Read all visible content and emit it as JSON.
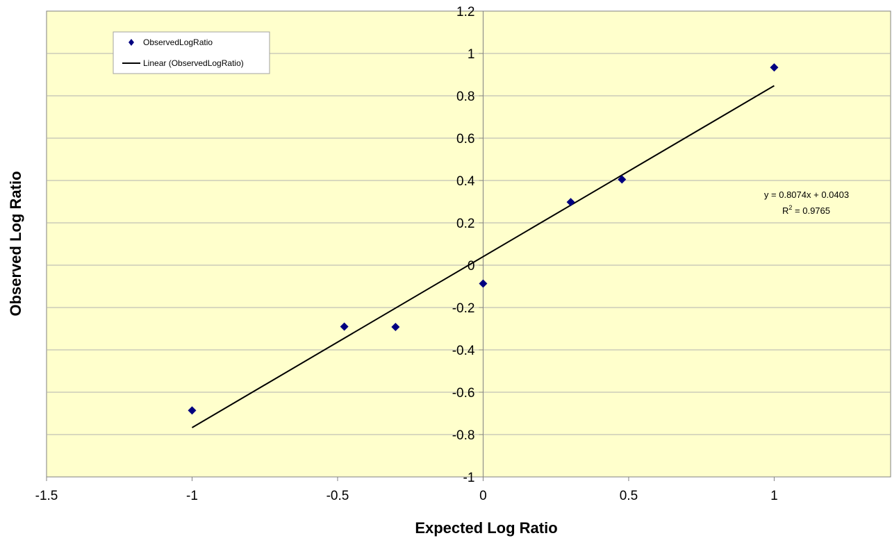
{
  "chart_data": {
    "type": "scatter",
    "title": "",
    "xlabel": "Expected Log Ratio",
    "ylabel": "Observed Log Ratio",
    "xlim": [
      -1.5,
      1.4
    ],
    "ylim": [
      -1,
      1.2
    ],
    "x_ticks": [
      -1.5,
      -1,
      -0.5,
      0,
      0.5,
      1
    ],
    "y_ticks": [
      -1,
      -0.8,
      -0.6,
      -0.4,
      -0.2,
      0,
      0.2,
      0.4,
      0.6,
      0.8,
      1,
      1.2
    ],
    "x_tick_labels": [
      "-1.5",
      "-1",
      "-0.5",
      "0",
      "0.5",
      "1"
    ],
    "y_tick_labels": [
      "-1",
      "-0.8",
      "-0.6",
      "-0.4",
      "-0.2",
      "0",
      "0.2",
      "0.4",
      "0.6",
      "0.8",
      "1",
      "1.2"
    ],
    "grid": "horizontal",
    "plot_background": "#ffffcc",
    "series": [
      {
        "name": "ObservedLogRatio",
        "marker": "diamond",
        "color": "#000080",
        "points": [
          {
            "x": -1,
            "y": -0.686
          },
          {
            "x": -0.477,
            "y": -0.29
          },
          {
            "x": -0.301,
            "y": -0.292
          },
          {
            "x": 0,
            "y": -0.087
          },
          {
            "x": 0.301,
            "y": 0.298
          },
          {
            "x": 0.477,
            "y": 0.405
          },
          {
            "x": 1,
            "y": 0.934
          }
        ]
      }
    ],
    "trendline": {
      "name": "Linear (ObservedLogRatio)",
      "type": "linear",
      "slope": 0.8074,
      "intercept": 0.0403,
      "x_range": [
        -1,
        1
      ],
      "color": "#000000"
    },
    "annotation": {
      "equation": "y = 0.8074x + 0.0403",
      "r2_prefix": "R",
      "r2_superscript": "2",
      "r2_value": " = 0.9765"
    },
    "legend": {
      "placement": "top-left",
      "entries": [
        "ObservedLogRatio",
        "Linear (ObservedLogRatio)"
      ]
    }
  }
}
